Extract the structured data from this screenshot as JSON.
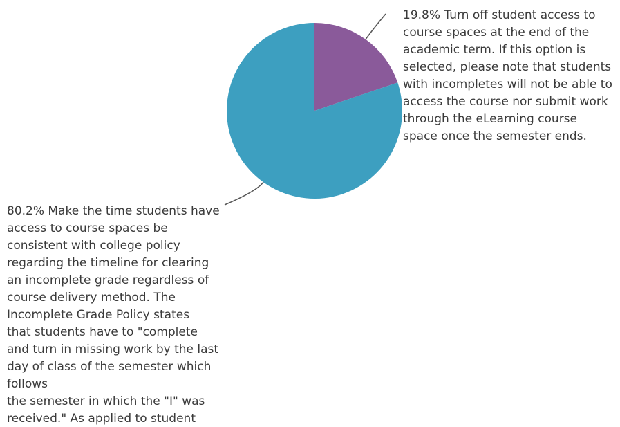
{
  "chart_data": {
    "type": "pie",
    "slices": [
      {
        "value": 19.8,
        "color": "#8a5a9a",
        "label_lines": [
          "19.8% Turn off student access to",
          "course spaces at the end of the",
          "academic term. If this option is",
          "selected, please note that students",
          "with incompletes will not be able to",
          "access the course nor submit work",
          "through the eLearning course",
          "space once the semester ends."
        ]
      },
      {
        "value": 80.2,
        "color": "#3d9fc0",
        "label_lines": [
          "80.2% Make the time students have",
          "access to course spaces be",
          "consistent with college policy",
          "regarding the timeline for clearing",
          "an incomplete grade regardless of",
          "course delivery method. The",
          "Incomplete Grade Policy states",
          "that students have to \"complete",
          "and turn in missing work by the last",
          "day of class of the semester which",
          "follows",
          "the semester in which the \"I\" was",
          "received.\" As applied to student"
        ]
      }
    ],
    "leader_line_color": "#555555"
  }
}
